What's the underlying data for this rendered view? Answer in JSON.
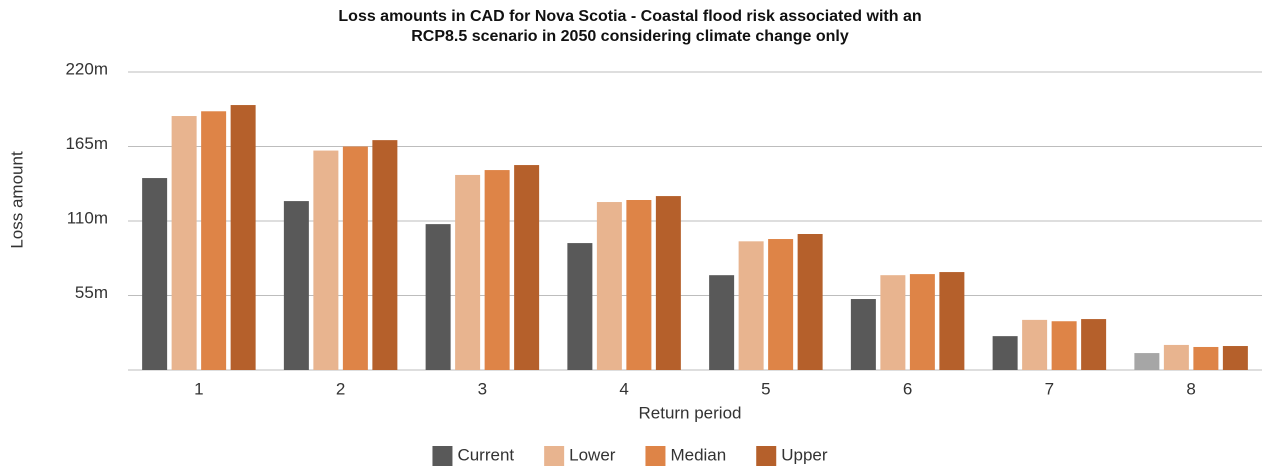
{
  "chart_data": {
    "type": "bar",
    "title": [
      "Loss amounts in CAD for Nova Scotia - Coastal flood risk associated with an",
      "RCP8.5 scenario in 2050 considering climate change only"
    ],
    "x_label": "Return period",
    "y_label": "Loss amount",
    "categories": [
      1,
      2,
      3,
      4,
      5,
      6,
      7,
      8
    ],
    "series": [
      {
        "name": "Current",
        "color": "#595959",
        "colors": [
          "#595959",
          "#595959",
          "#595959",
          "#595959",
          "#595959",
          "#595959",
          "#595959",
          "#a6a6a6"
        ],
        "values": [
          141.7,
          124.7,
          107.7,
          93.7,
          70,
          52.4,
          25,
          12.5
        ]
      },
      {
        "name": "Lower",
        "color": "#e8b48f",
        "values": [
          187.5,
          162,
          144,
          124,
          95,
          70,
          37,
          18.5
        ]
      },
      {
        "name": "Median",
        "color": "#de8447",
        "values": [
          191,
          165,
          147.6,
          125.5,
          96.7,
          70.8,
          36,
          17
        ]
      },
      {
        "name": "Upper",
        "color": "#b5602b",
        "values": [
          195.6,
          169.7,
          151.3,
          128.4,
          100.4,
          72.3,
          37.6,
          17.7
        ]
      }
    ],
    "ylim": [
      0,
      220
    ],
    "yticks": [
      {
        "value": 55,
        "label": "55m"
      },
      {
        "value": 110,
        "label": "110m"
      },
      {
        "value": 165,
        "label": "165m"
      },
      {
        "value": 220,
        "label": "220m"
      }
    ],
    "grid": true,
    "legend": "bottom"
  }
}
